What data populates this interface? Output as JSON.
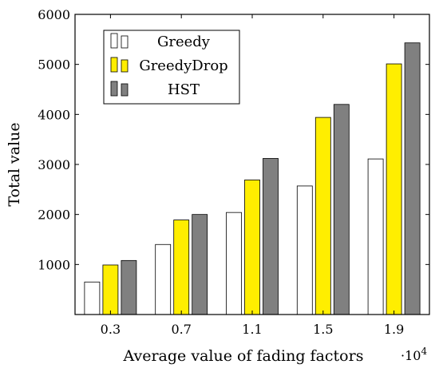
{
  "chart_data": {
    "type": "bar",
    "title": "",
    "xlabel": "Average value of fading factors",
    "ylabel": "Total value",
    "x_multiplier_label": "·10",
    "x_multiplier_exponent": "4",
    "categories": [
      "0.3",
      "0.7",
      "1.1",
      "1.5",
      "1.9"
    ],
    "yticks": [
      "1000",
      "2000",
      "3000",
      "4000",
      "5000",
      "6000"
    ],
    "ylim": [
      0,
      6000
    ],
    "grid": false,
    "legend_position": "top-left",
    "series": [
      {
        "name": "Greedy",
        "color": "#ffffff",
        "values": [
          650,
          1400,
          2040,
          2570,
          3110
        ]
      },
      {
        "name": "GreedyDrop",
        "color": "#ffee00",
        "values": [
          990,
          1890,
          2690,
          3940,
          5010
        ]
      },
      {
        "name": "HST",
        "color": "#808080",
        "values": [
          1080,
          2000,
          3120,
          4200,
          5430
        ]
      }
    ]
  }
}
